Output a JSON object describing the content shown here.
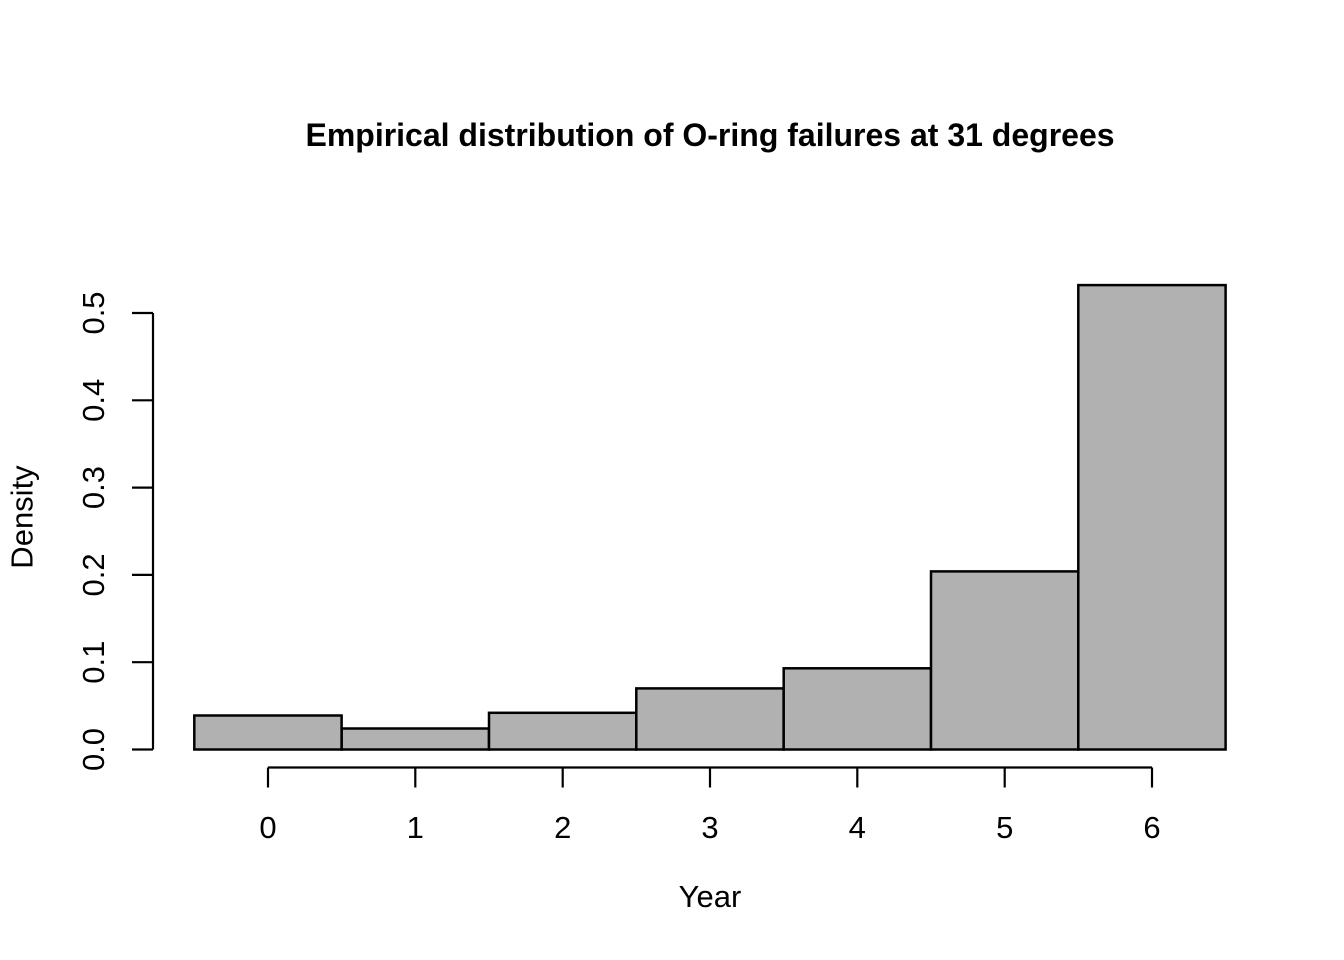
{
  "page": {
    "background_color": "#ffffff"
  },
  "chart_data": {
    "type": "bar",
    "subtype": "histogram",
    "title": "Empirical distribution of O-ring failures at 31 degrees",
    "xlabel": "Year",
    "ylabel": "Density",
    "categories": [
      0,
      1,
      2,
      3,
      4,
      5,
      6
    ],
    "values": [
      0.039,
      0.024,
      0.042,
      0.07,
      0.093,
      0.204,
      0.532
    ],
    "bar_halfwidth": 0.5,
    "xlim": [
      -0.5,
      6.5
    ],
    "ylim": [
      0,
      0.55
    ],
    "x_ticks": [
      0,
      1,
      2,
      3,
      4,
      5,
      6
    ],
    "x_tick_labels": [
      "0",
      "1",
      "2",
      "3",
      "4",
      "5",
      "6"
    ],
    "y_ticks": [
      0.0,
      0.1,
      0.2,
      0.3,
      0.4,
      0.5
    ],
    "y_tick_labels": [
      "0.0",
      "0.1",
      "0.2",
      "0.3",
      "0.4",
      "0.5"
    ],
    "grid": false,
    "legend": null,
    "colors": {
      "bar_fill": "#b1b1b1",
      "bar_stroke": "#000000",
      "axis": "#000000",
      "text": "#000000"
    }
  }
}
